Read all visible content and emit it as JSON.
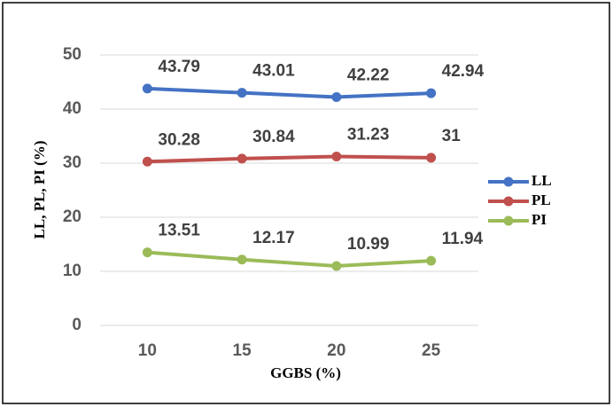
{
  "chart_data": {
    "type": "line",
    "x_label": "GGBS (%)",
    "y_label": "LL, PL, PI (%)",
    "categories": [
      "10",
      "15",
      "20",
      "25"
    ],
    "series": [
      {
        "name": "LL",
        "color": "#4472c4",
        "values": [
          43.79,
          43.01,
          42.22,
          42.94
        ]
      },
      {
        "name": "PL",
        "color": "#c0504d",
        "values": [
          30.28,
          30.84,
          31.23,
          31
        ]
      },
      {
        "name": "PI",
        "color": "#9bbb59",
        "values": [
          13.51,
          12.17,
          10.99,
          11.94
        ]
      }
    ],
    "ylim": [
      0,
      50
    ],
    "yticks": [
      0,
      10,
      20,
      30,
      40,
      50
    ],
    "grid": true,
    "legend": "right"
  }
}
